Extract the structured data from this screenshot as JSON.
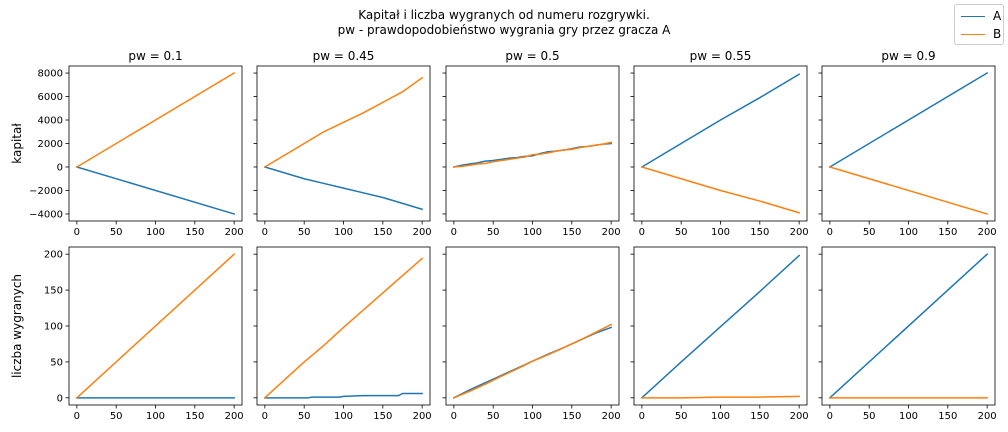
{
  "figure": {
    "suptitle_line1": "Kapitał i liczba wygranych od numeru rozgrywki.",
    "suptitle_line2": "pw - prawdopodobieństwo wygrania gry przez gracza A"
  },
  "legend": {
    "items": [
      {
        "label": "A",
        "color": "#1f77b4"
      },
      {
        "label": "B",
        "color": "#ff7f0e"
      }
    ],
    "placement": "top-right"
  },
  "colors": {
    "A": "#1f77b4",
    "B": "#ff7f0e"
  },
  "chart_data": [
    {
      "type": "line",
      "row": "kapitał",
      "title": "pw = 0.1",
      "ylabel": "kapitał",
      "xlim": [
        0,
        200
      ],
      "ylim": [
        -4000,
        8000
      ],
      "xticks": [
        0,
        50,
        100,
        150,
        200
      ],
      "yticks": [
        -4000,
        -2000,
        0,
        2000,
        4000,
        6000,
        8000
      ],
      "series": [
        {
          "name": "A",
          "x": [
            0,
            200
          ],
          "y": [
            0,
            -4000
          ]
        },
        {
          "name": "B",
          "x": [
            0,
            200
          ],
          "y": [
            0,
            8000
          ]
        }
      ]
    },
    {
      "type": "line",
      "row": "kapitał",
      "title": "pw = 0.45",
      "ylabel": "",
      "xlim": [
        0,
        200
      ],
      "ylim": [
        -4000,
        8000
      ],
      "xticks": [
        0,
        50,
        100,
        150,
        200
      ],
      "yticks": [
        -4000,
        -2000,
        0,
        2000,
        4000,
        6000,
        8000
      ],
      "series": [
        {
          "name": "A",
          "x": [
            0,
            25,
            50,
            75,
            100,
            125,
            150,
            175,
            200
          ],
          "y": [
            0,
            -500,
            -1000,
            -1400,
            -1800,
            -2200,
            -2600,
            -3100,
            -3600
          ]
        },
        {
          "name": "B",
          "x": [
            0,
            25,
            50,
            75,
            100,
            125,
            150,
            175,
            200
          ],
          "y": [
            0,
            1000,
            2000,
            3000,
            3800,
            4600,
            5500,
            6400,
            7600
          ]
        }
      ]
    },
    {
      "type": "line",
      "row": "kapitał",
      "title": "pw = 0.5",
      "ylabel": "",
      "xlim": [
        0,
        200
      ],
      "ylim": [
        -4000,
        8000
      ],
      "xticks": [
        0,
        50,
        100,
        150,
        200
      ],
      "yticks": [
        -4000,
        -2000,
        0,
        2000,
        4000,
        6000,
        8000
      ],
      "series": [
        {
          "name": "A",
          "x": [
            0,
            10,
            20,
            30,
            40,
            50,
            60,
            70,
            80,
            90,
            100,
            110,
            120,
            130,
            140,
            150,
            160,
            170,
            180,
            190,
            200
          ],
          "y": [
            0,
            150,
            250,
            350,
            500,
            550,
            650,
            750,
            800,
            900,
            950,
            1150,
            1300,
            1350,
            1450,
            1550,
            1700,
            1750,
            1850,
            1950,
            2000
          ]
        },
        {
          "name": "B",
          "x": [
            0,
            10,
            20,
            30,
            40,
            50,
            60,
            70,
            80,
            90,
            100,
            110,
            120,
            130,
            140,
            150,
            160,
            170,
            180,
            190,
            200
          ],
          "y": [
            0,
            50,
            150,
            250,
            300,
            450,
            550,
            650,
            750,
            850,
            1050,
            1100,
            1200,
            1350,
            1450,
            1500,
            1650,
            1750,
            1850,
            1950,
            2100
          ]
        }
      ]
    },
    {
      "type": "line",
      "row": "kapitał",
      "title": "pw = 0.55",
      "ylabel": "",
      "xlim": [
        0,
        200
      ],
      "ylim": [
        -4000,
        8000
      ],
      "xticks": [
        0,
        50,
        100,
        150,
        200
      ],
      "yticks": [
        -4000,
        -2000,
        0,
        2000,
        4000,
        6000,
        8000
      ],
      "series": [
        {
          "name": "A",
          "x": [
            0,
            50,
            100,
            150,
            200
          ],
          "y": [
            0,
            2000,
            4000,
            5900,
            7900
          ]
        },
        {
          "name": "B",
          "x": [
            0,
            50,
            100,
            150,
            200
          ],
          "y": [
            0,
            -1000,
            -2000,
            -2900,
            -3900
          ]
        }
      ]
    },
    {
      "type": "line",
      "row": "kapitał",
      "title": "pw = 0.9",
      "ylabel": "",
      "xlim": [
        0,
        200
      ],
      "ylim": [
        -4000,
        8000
      ],
      "xticks": [
        0,
        50,
        100,
        150,
        200
      ],
      "yticks": [
        -4000,
        -2000,
        0,
        2000,
        4000,
        6000,
        8000
      ],
      "series": [
        {
          "name": "A",
          "x": [
            0,
            200
          ],
          "y": [
            0,
            8000
          ]
        },
        {
          "name": "B",
          "x": [
            0,
            200
          ],
          "y": [
            0,
            -4000
          ]
        }
      ]
    },
    {
      "type": "line",
      "row": "liczba wygranych",
      "title": "",
      "ylabel": "liczba wygranych",
      "xlim": [
        0,
        200
      ],
      "ylim": [
        0,
        200
      ],
      "xticks": [
        0,
        50,
        100,
        150,
        200
      ],
      "yticks": [
        0,
        50,
        100,
        150,
        200
      ],
      "series": [
        {
          "name": "A",
          "x": [
            0,
            200
          ],
          "y": [
            0,
            0
          ]
        },
        {
          "name": "B",
          "x": [
            0,
            200
          ],
          "y": [
            0,
            200
          ]
        }
      ]
    },
    {
      "type": "line",
      "row": "liczba wygranych",
      "title": "",
      "ylabel": "",
      "xlim": [
        0,
        200
      ],
      "ylim": [
        0,
        200
      ],
      "xticks": [
        0,
        50,
        100,
        150,
        200
      ],
      "yticks": [
        0,
        50,
        100,
        150,
        200
      ],
      "series": [
        {
          "name": "A",
          "x": [
            0,
            55,
            60,
            95,
            100,
            125,
            170,
            175,
            200
          ],
          "y": [
            0,
            0,
            1,
            1,
            2,
            3,
            3,
            6,
            6
          ]
        },
        {
          "name": "B",
          "x": [
            0,
            25,
            50,
            75,
            100,
            125,
            150,
            175,
            200
          ],
          "y": [
            0,
            25,
            50,
            73,
            98,
            122,
            146,
            170,
            194
          ]
        }
      ]
    },
    {
      "type": "line",
      "row": "liczba wygranych",
      "title": "",
      "ylabel": "",
      "xlim": [
        0,
        200
      ],
      "ylim": [
        0,
        200
      ],
      "xticks": [
        0,
        50,
        100,
        150,
        200
      ],
      "yticks": [
        0,
        50,
        100,
        150,
        200
      ],
      "series": [
        {
          "name": "A",
          "x": [
            0,
            20,
            40,
            60,
            80,
            100,
            120,
            140,
            160,
            180,
            200
          ],
          "y": [
            0,
            11,
            21,
            31,
            41,
            51,
            61,
            70,
            80,
            90,
            98
          ]
        },
        {
          "name": "B",
          "x": [
            0,
            20,
            40,
            60,
            80,
            100,
            120,
            140,
            160,
            180,
            200
          ],
          "y": [
            0,
            9,
            19,
            30,
            40,
            51,
            60,
            70,
            80,
            91,
            102
          ]
        }
      ]
    },
    {
      "type": "line",
      "row": "liczba wygranych",
      "title": "",
      "ylabel": "",
      "xlim": [
        0,
        200
      ],
      "ylim": [
        0,
        200
      ],
      "xticks": [
        0,
        50,
        100,
        150,
        200
      ],
      "yticks": [
        0,
        50,
        100,
        150,
        200
      ],
      "series": [
        {
          "name": "A",
          "x": [
            0,
            50,
            100,
            150,
            200
          ],
          "y": [
            0,
            50,
            99,
            148,
            198
          ]
        },
        {
          "name": "B",
          "x": [
            0,
            50,
            100,
            150,
            200
          ],
          "y": [
            0,
            0,
            1,
            1,
            2
          ]
        }
      ]
    },
    {
      "type": "line",
      "row": "liczba wygranych",
      "title": "",
      "ylabel": "",
      "xlim": [
        0,
        200
      ],
      "ylim": [
        0,
        200
      ],
      "xticks": [
        0,
        50,
        100,
        150,
        200
      ],
      "yticks": [
        0,
        50,
        100,
        150,
        200
      ],
      "series": [
        {
          "name": "A",
          "x": [
            0,
            200
          ],
          "y": [
            0,
            200
          ]
        },
        {
          "name": "B",
          "x": [
            0,
            200
          ],
          "y": [
            0,
            0
          ]
        }
      ]
    }
  ]
}
